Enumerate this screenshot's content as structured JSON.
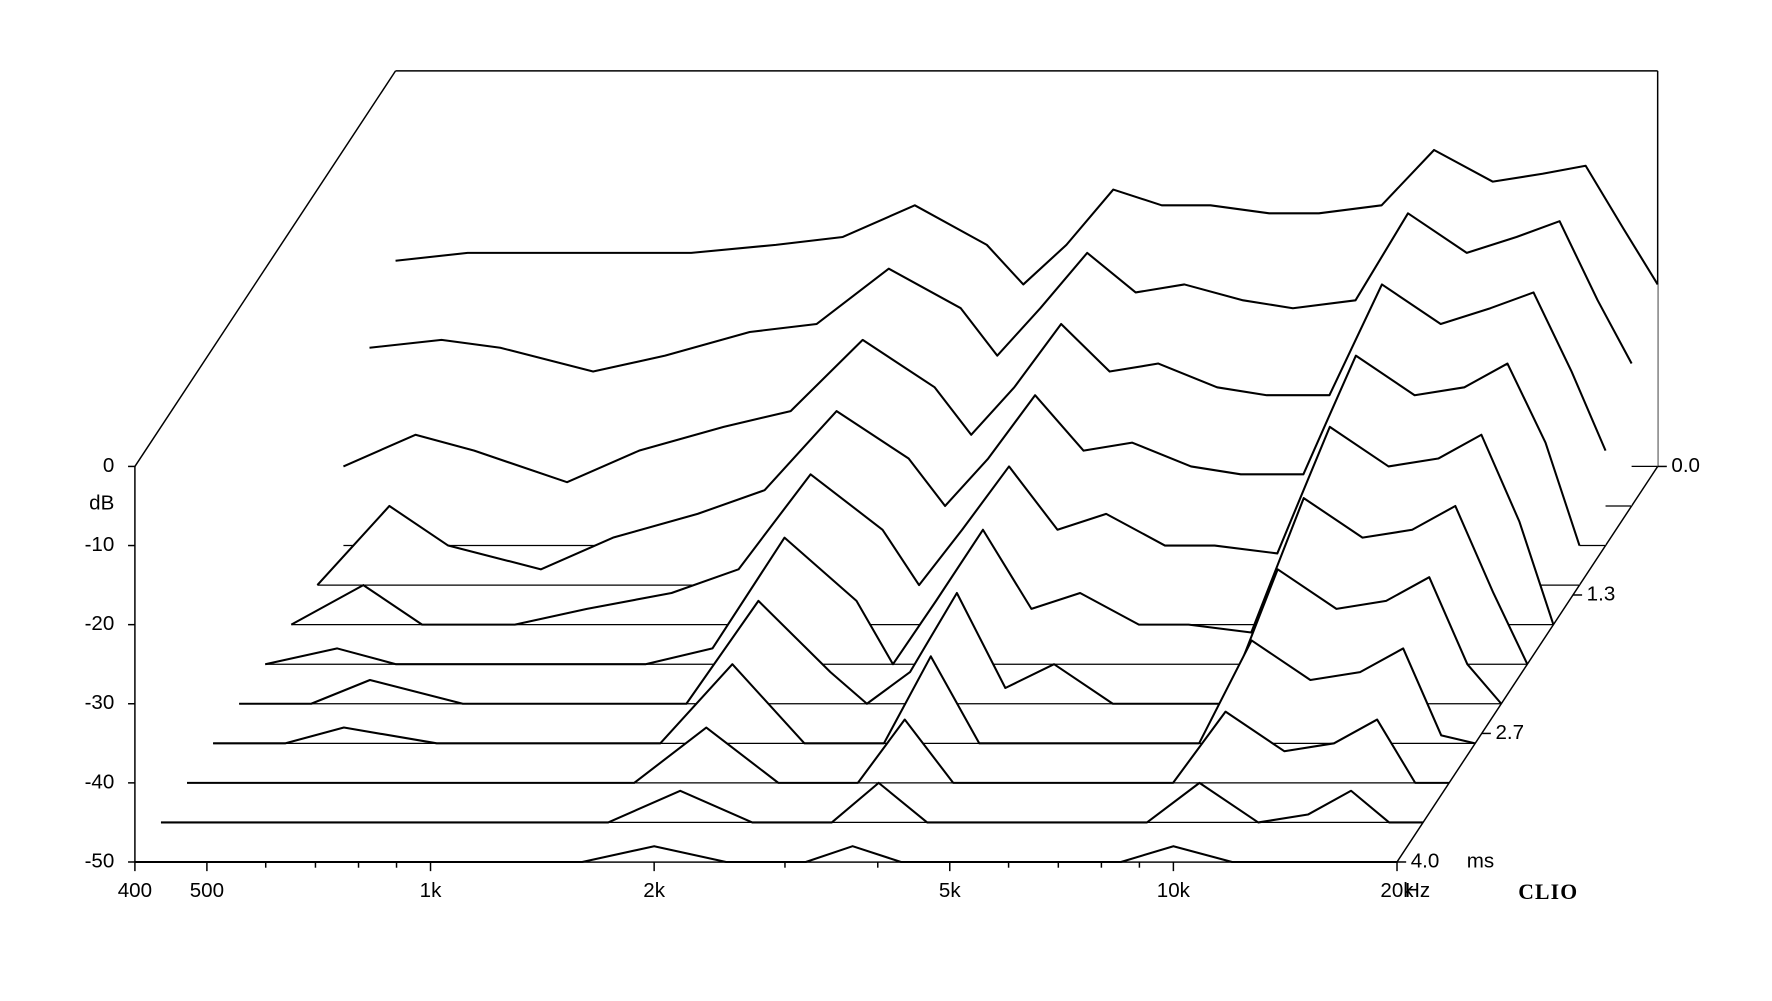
{
  "chart_data": {
    "type": "waterfall",
    "ylabel": "dB",
    "xunit": "Hz",
    "zunit": "ms",
    "brand": "CLIO",
    "log_x": true,
    "xlim": [
      400,
      20000
    ],
    "xticks": [
      400,
      500,
      {
        "value": 1000,
        "label": "1k"
      },
      {
        "value": 2000,
        "label": "2k"
      },
      {
        "value": 5000,
        "label": "5k"
      },
      {
        "value": 10000,
        "label": "10k"
      },
      {
        "value": 20000,
        "label": "20k"
      }
    ],
    "xminorticks": [
      600,
      700,
      800,
      900,
      3000,
      4000,
      6000,
      7000,
      8000,
      9000
    ],
    "ylim": [
      -50,
      0
    ],
    "yticks": [
      0,
      -10,
      -20,
      -30,
      -40,
      -50
    ],
    "zlim": [
      0,
      4
    ],
    "zticks": [
      {
        "value": 0,
        "label": "0.0"
      },
      1.3,
      2.7,
      {
        "value": 4,
        "label": "4.0"
      }
    ],
    "color": "#000000",
    "x": [
      400,
      500,
      600,
      800,
      1000,
      1300,
      1600,
      2000,
      2500,
      2800,
      3200,
      3700,
      4300,
      5000,
      6000,
      7000,
      8500,
      10000,
      12000,
      14000,
      16000,
      18000,
      20000
    ],
    "series": [
      {
        "time": 0,
        "values": [
          -24,
          -23,
          -23,
          -23,
          -23,
          -22,
          -21,
          -17,
          -22,
          -27,
          -22,
          -15,
          -17,
          -17,
          -18,
          -18,
          -17,
          -10,
          -14,
          -13,
          -12,
          -20,
          -27
        ]
      },
      {
        "time": 0.4,
        "values": [
          -30,
          -29,
          -30,
          -33,
          -31,
          -28,
          -27,
          -20,
          -25,
          -31,
          -25,
          -18,
          -23,
          -22,
          -24,
          -25,
          -24,
          -13,
          -18,
          -16,
          -14,
          -24,
          -32
        ]
      },
      {
        "time": 0.8,
        "values": [
          -40,
          -36,
          -38,
          -42,
          -38,
          -35,
          -33,
          -24,
          -30,
          -36,
          -30,
          -22,
          -28,
          -27,
          -30,
          -31,
          -31,
          -17,
          -22,
          -20,
          -18,
          -28,
          -38
        ]
      },
      {
        "time": 1.2,
        "values": [
          -50,
          -40,
          -45,
          -48,
          -44,
          -41,
          -38,
          -28,
          -34,
          -40,
          -34,
          -26,
          -33,
          -32,
          -35,
          -36,
          -36,
          -21,
          -26,
          -25,
          -22,
          -32,
          -45
        ]
      },
      {
        "time": 1.6,
        "values": [
          -50,
          -45,
          -50,
          -50,
          -48,
          -46,
          -43,
          -31,
          -38,
          -45,
          -38,
          -30,
          -38,
          -36,
          -40,
          -40,
          -41,
          -25,
          -30,
          -29,
          -26,
          -37,
          -50
        ]
      },
      {
        "time": 2.0,
        "values": [
          -50,
          -48,
          -50,
          -50,
          -50,
          -50,
          -48,
          -34,
          -42,
          -50,
          -42,
          -33,
          -43,
          -41,
          -45,
          -45,
          -46,
          -29,
          -34,
          -33,
          -30,
          -41,
          -50
        ]
      },
      {
        "time": 2.4,
        "values": [
          -50,
          -50,
          -47,
          -50,
          -50,
          -50,
          -50,
          -37,
          -46,
          -50,
          -46,
          -36,
          -48,
          -45,
          -50,
          -50,
          -50,
          -33,
          -38,
          -37,
          -34,
          -45,
          -50
        ]
      },
      {
        "time": 2.8,
        "values": [
          -50,
          -50,
          -48,
          -50,
          -50,
          -50,
          -50,
          -40,
          -50,
          -50,
          -50,
          -39,
          -50,
          -50,
          -50,
          -50,
          -50,
          -37,
          -42,
          -41,
          -38,
          -49,
          -50
        ]
      },
      {
        "time": 3.2,
        "values": [
          -50,
          -50,
          -50,
          -50,
          -50,
          -50,
          -50,
          -43,
          -50,
          -50,
          -50,
          -42,
          -50,
          -50,
          -50,
          -50,
          -50,
          -41,
          -46,
          -45,
          -42,
          -50,
          -50
        ]
      },
      {
        "time": 3.6,
        "values": [
          -50,
          -50,
          -50,
          -50,
          -50,
          -50,
          -50,
          -46,
          -50,
          -50,
          -50,
          -45,
          -50,
          -50,
          -50,
          -50,
          -50,
          -45,
          -50,
          -49,
          -46,
          -50,
          -50
        ]
      },
      {
        "time": 4.0,
        "values": [
          -50,
          -50,
          -50,
          -50,
          -50,
          -50,
          -50,
          -48,
          -50,
          -50,
          -50,
          -48,
          -50,
          -50,
          -50,
          -50,
          -50,
          -48,
          -50,
          -50,
          -50,
          -50,
          -50
        ]
      }
    ]
  }
}
